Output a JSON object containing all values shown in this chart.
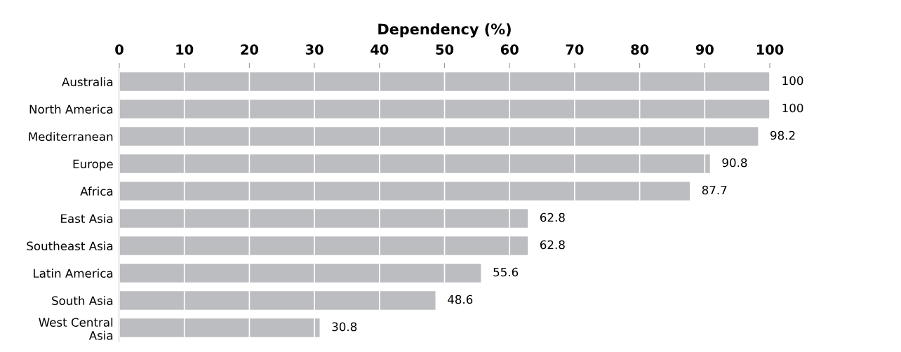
{
  "chart_data": {
    "type": "bar",
    "orientation": "horizontal",
    "xlabel": "Dependency (%)",
    "categories": [
      "Australia",
      "North America",
      "Mediterranean",
      "Europe",
      "Africa",
      "East Asia",
      "Southeast Asia",
      "Latin America",
      "South Asia",
      "West Central Asia"
    ],
    "values": [
      100,
      100,
      98.2,
      90.8,
      87.7,
      62.8,
      62.8,
      55.6,
      48.6,
      30.8
    ],
    "color": "#bcbdc0",
    "xlim": [
      0,
      100
    ],
    "xticks": [
      0,
      10,
      20,
      30,
      40,
      50,
      60,
      70,
      80,
      90,
      100
    ],
    "grid": "x",
    "data_labels": true
  }
}
